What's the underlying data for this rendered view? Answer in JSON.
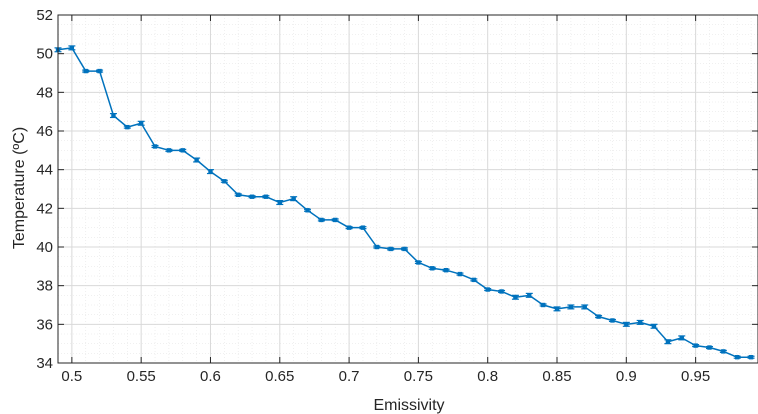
{
  "chart_data": {
    "type": "line",
    "xlabel": "Emissivity",
    "ylabel": "Temperature (ºC)",
    "xlim": [
      0.49,
      0.995
    ],
    "ylim": [
      34,
      52
    ],
    "x_ticks": [
      0.5,
      0.55,
      0.6,
      0.65,
      0.7,
      0.75,
      0.8,
      0.85,
      0.9,
      0.95
    ],
    "x_tick_labels": [
      "0.5",
      "0.55",
      "0.6",
      "0.65",
      "0.7",
      "0.75",
      "0.8",
      "0.85",
      "0.9",
      "0.95"
    ],
    "y_ticks": [
      34,
      36,
      38,
      40,
      42,
      44,
      46,
      48,
      50,
      52
    ],
    "y_tick_labels": [
      "34",
      "36",
      "38",
      "40",
      "42",
      "44",
      "46",
      "48",
      "50",
      "52"
    ],
    "grid": true,
    "minor_grid": true,
    "error_bars": true,
    "series": [
      {
        "color": "#0072BD",
        "x": [
          0.49,
          0.5,
          0.51,
          0.52,
          0.53,
          0.54,
          0.55,
          0.56,
          0.57,
          0.58,
          0.59,
          0.6,
          0.61,
          0.62,
          0.63,
          0.64,
          0.65,
          0.66,
          0.67,
          0.68,
          0.69,
          0.7,
          0.71,
          0.72,
          0.73,
          0.74,
          0.75,
          0.76,
          0.77,
          0.78,
          0.79,
          0.8,
          0.81,
          0.82,
          0.83,
          0.84,
          0.85,
          0.86,
          0.87,
          0.88,
          0.89,
          0.9,
          0.91,
          0.92,
          0.93,
          0.94,
          0.95,
          0.96,
          0.97,
          0.98,
          0.99
        ],
        "y": [
          50.2,
          50.3,
          49.1,
          49.1,
          46.8,
          46.2,
          46.4,
          45.2,
          45.0,
          45.0,
          44.5,
          43.9,
          43.4,
          42.7,
          42.6,
          42.6,
          42.3,
          42.5,
          41.9,
          41.4,
          41.4,
          41.0,
          41.0,
          40.0,
          39.9,
          39.9,
          39.2,
          38.9,
          38.8,
          38.6,
          38.3,
          37.8,
          37.7,
          37.4,
          37.5,
          37.0,
          36.8,
          36.9,
          36.9,
          36.4,
          36.2,
          36.0,
          36.1,
          35.9,
          35.1,
          35.3,
          34.9,
          34.8,
          34.6,
          34.3,
          34.3
        ],
        "err": [
          0.1,
          0.1,
          0.05,
          0.05,
          0.1,
          0.05,
          0.1,
          0.05,
          0.05,
          0.05,
          0.1,
          0.1,
          0.05,
          0.05,
          0.05,
          0.05,
          0.1,
          0.1,
          0.05,
          0.05,
          0.05,
          0.05,
          0.05,
          0.05,
          0.05,
          0.05,
          0.05,
          0.05,
          0.05,
          0.05,
          0.05,
          0.05,
          0.05,
          0.1,
          0.1,
          0.05,
          0.1,
          0.1,
          0.1,
          0.05,
          0.05,
          0.1,
          0.1,
          0.1,
          0.1,
          0.1,
          0.05,
          0.05,
          0.05,
          0.05,
          0.05
        ]
      }
    ]
  }
}
